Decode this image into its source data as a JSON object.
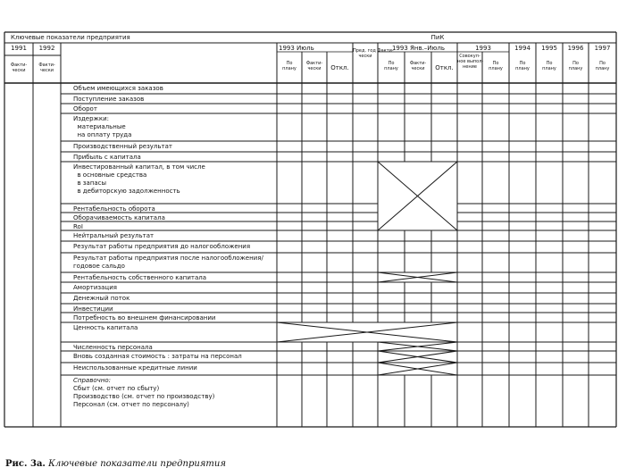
{
  "title": "Ключевые показатели предприятия",
  "group_title": "ПиК",
  "header": {
    "y1991": "1991",
    "y1992": "1992",
    "fact": "Факти-\nчески",
    "july_1993": "1993 Июль",
    "prev_year": "Пред. год Факти-\nчески",
    "jan_july_1993": "1993 Янв.–Июль",
    "y1993": "1993",
    "cumulative": "Совокуп-\nное выпол-\nнение",
    "y1994": "1994",
    "y1995": "1995",
    "y1996": "1996",
    "y1997": "1997",
    "plan": "По\nплану",
    "actual": "Факти-\nчески",
    "deviation": "Откл."
  },
  "rows": [
    [
      "Объем имеющихся заказов"
    ],
    [
      "Поступление заказов"
    ],
    [
      "Оборот"
    ],
    [
      "Издержки:",
      "  материальные",
      "  на оплату труда"
    ],
    [
      "Производственный результат"
    ],
    [
      "Прибыль с капитала"
    ],
    [
      "Инвестированный капитал, в том числе",
      "  в основные средства",
      "  в запасы",
      "  в дебиторскую задолженность"
    ],
    [
      "Рентабельность оборота"
    ],
    [
      "Оборачиваемость капитала"
    ],
    [
      "RoI"
    ],
    [
      "Нейтральный результат"
    ],
    [
      "Результат работы предприятия до налогообложения"
    ],
    [
      "Результат работы предприятия после налогообложения/",
      "годовое сальдо"
    ],
    [
      "Рентабельность собственного капитала"
    ],
    [
      "Амортизация"
    ],
    [
      "Денежный поток"
    ],
    [
      "Инвестиции"
    ],
    [
      "Потребность во внешнем финансировании"
    ],
    [
      "Ценность капитала"
    ],
    [
      "Численность персонала"
    ],
    [
      "Вновь созданная стоимость : затраты на персонал"
    ],
    [
      "Неиспользованные кредитные линии"
    ],
    [
      "Справочно:",
      "Сбыт (см. отчет по сбыту)",
      "Производство (см. отчет по производству)",
      "Персонал (см. отчет по персоналу)"
    ]
  ],
  "caption_prefix": "Рис. 3а.",
  "caption": "Ключевые показатели предприятия"
}
